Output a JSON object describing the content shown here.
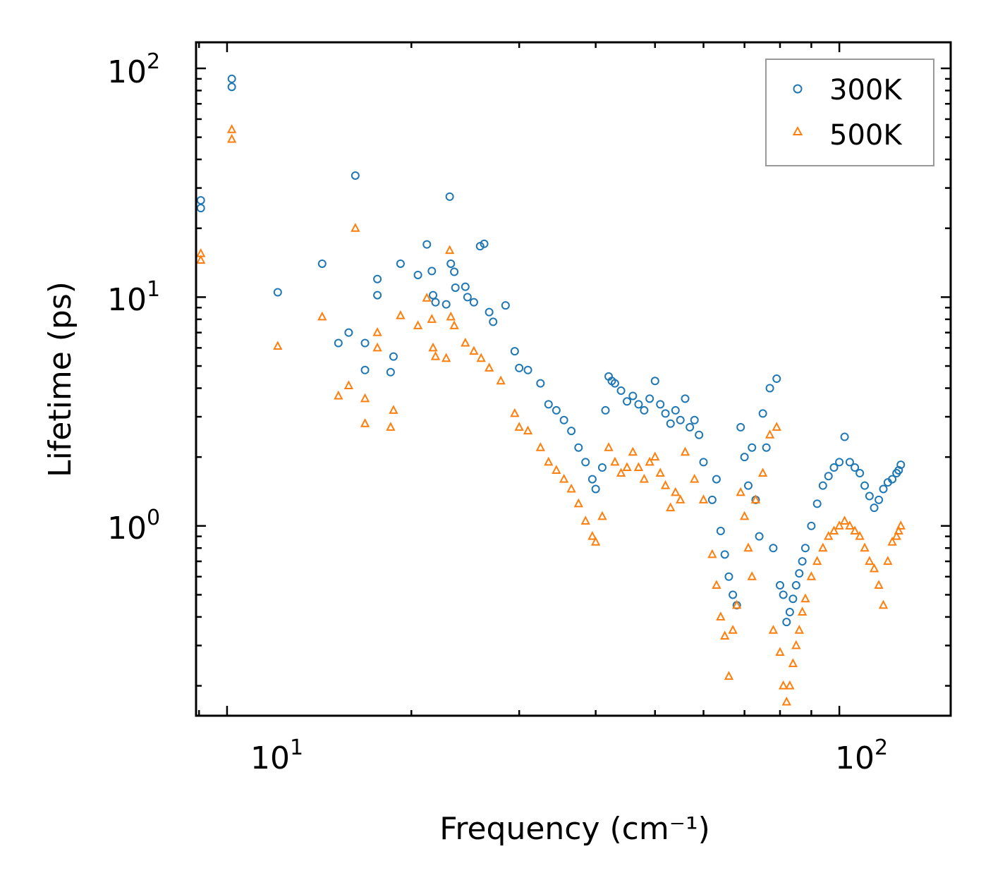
{
  "chart_data": {
    "type": "scatter",
    "title": "",
    "xlabel": "Frequency (cm⁻¹)",
    "ylabel": "Lifetime (ps)",
    "xscale": "log",
    "yscale": "log",
    "xlim": [
      8.9,
      152
    ],
    "ylim": [
      0.148,
      130
    ],
    "x_tick_labels": [
      {
        "value": 10,
        "base": "10",
        "exp": "1"
      },
      {
        "value": 100,
        "base": "10",
        "exp": "2"
      }
    ],
    "y_tick_labels": [
      {
        "value": 1,
        "base": "10",
        "exp": "0"
      },
      {
        "value": 10,
        "base": "10",
        "exp": "1"
      },
      {
        "value": 100,
        "base": "10",
        "exp": "2"
      }
    ],
    "legend_position": "top-right",
    "series": [
      {
        "name": "300K",
        "marker": "circle",
        "color": "#1f77b4",
        "points": [
          [
            9.06,
            26.5
          ],
          [
            9.06,
            24.5
          ],
          [
            10.18,
            90
          ],
          [
            10.18,
            83
          ],
          [
            12.1,
            10.5
          ],
          [
            14.3,
            14
          ],
          [
            15.2,
            6.3
          ],
          [
            15.8,
            7
          ],
          [
            16.2,
            34
          ],
          [
            16.8,
            6.3
          ],
          [
            16.8,
            4.8
          ],
          [
            17.6,
            12
          ],
          [
            17.6,
            10.2
          ],
          [
            18.5,
            4.7
          ],
          [
            18.7,
            5.5
          ],
          [
            19.2,
            14
          ],
          [
            20.5,
            12.5
          ],
          [
            21.2,
            17
          ],
          [
            21.6,
            13
          ],
          [
            21.7,
            10.2
          ],
          [
            21.9,
            9.5
          ],
          [
            22.8,
            9.3
          ],
          [
            23.1,
            27.5
          ],
          [
            23.2,
            14
          ],
          [
            23.5,
            12.9
          ],
          [
            23.6,
            11
          ],
          [
            24.5,
            11.1
          ],
          [
            24.7,
            10
          ],
          [
            25.3,
            9.5
          ],
          [
            25.9,
            16.7
          ],
          [
            26.3,
            17.1
          ],
          [
            26.8,
            8.6
          ],
          [
            27.2,
            7.8
          ],
          [
            28.5,
            9.2
          ],
          [
            29.5,
            5.8
          ],
          [
            30,
            4.9
          ],
          [
            31,
            4.8
          ],
          [
            32.5,
            4.2
          ],
          [
            33.5,
            3.4
          ],
          [
            34.5,
            3.2
          ],
          [
            35.5,
            2.9
          ],
          [
            36.5,
            2.6
          ],
          [
            37.5,
            2.2
          ],
          [
            38.5,
            1.9
          ],
          [
            39.5,
            1.6
          ],
          [
            40,
            1.45
          ],
          [
            41,
            1.8
          ],
          [
            41.5,
            3.2
          ],
          [
            42,
            4.5
          ],
          [
            42.5,
            4.3
          ],
          [
            43,
            4.2
          ],
          [
            44,
            3.9
          ],
          [
            45,
            3.5
          ],
          [
            46,
            3.7
          ],
          [
            47,
            3.4
          ],
          [
            48,
            3.2
          ],
          [
            49,
            3.6
          ],
          [
            50,
            4.3
          ],
          [
            51,
            3.4
          ],
          [
            52,
            3.1
          ],
          [
            53,
            2.8
          ],
          [
            54,
            3.2
          ],
          [
            55,
            2.9
          ],
          [
            56,
            3.6
          ],
          [
            57,
            2.7
          ],
          [
            58,
            2.9
          ],
          [
            59,
            2.5
          ],
          [
            60,
            1.9
          ],
          [
            62,
            1.3
          ],
          [
            63,
            1.6
          ],
          [
            64,
            0.95
          ],
          [
            65,
            0.75
          ],
          [
            66,
            0.6
          ],
          [
            67,
            0.5
          ],
          [
            68,
            0.45
          ],
          [
            69,
            2.7
          ],
          [
            70,
            2.0
          ],
          [
            71,
            1.5
          ],
          [
            72,
            2.2
          ],
          [
            73,
            1.3
          ],
          [
            74,
            0.9
          ],
          [
            75,
            3.1
          ],
          [
            76,
            2.2
          ],
          [
            77,
            4.0
          ],
          [
            78,
            0.8
          ],
          [
            79,
            4.4
          ],
          [
            80,
            0.55
          ],
          [
            81,
            0.5
          ],
          [
            82,
            0.38
          ],
          [
            83,
            0.42
          ],
          [
            84,
            0.48
          ],
          [
            85,
            0.55
          ],
          [
            86,
            0.62
          ],
          [
            87,
            0.7
          ],
          [
            88,
            0.8
          ],
          [
            90,
            1.0
          ],
          [
            92,
            1.25
          ],
          [
            94,
            1.5
          ],
          [
            96,
            1.65
          ],
          [
            98,
            1.8
          ],
          [
            100,
            1.9
          ],
          [
            102,
            2.45
          ],
          [
            104,
            1.9
          ],
          [
            106,
            1.8
          ],
          [
            108,
            1.7
          ],
          [
            110,
            1.5
          ],
          [
            112,
            1.35
          ],
          [
            114,
            1.2
          ],
          [
            116,
            1.3
          ],
          [
            118,
            1.45
          ],
          [
            120,
            1.55
          ],
          [
            122,
            1.6
          ],
          [
            124,
            1.7
          ],
          [
            125,
            1.75
          ],
          [
            126,
            1.85
          ]
        ]
      },
      {
        "name": "500K",
        "marker": "triangle",
        "color": "#ff7f0e",
        "points": [
          [
            9.06,
            15.5
          ],
          [
            9.06,
            14.5
          ],
          [
            10.18,
            54
          ],
          [
            10.18,
            49
          ],
          [
            12.1,
            6.1
          ],
          [
            14.3,
            8.2
          ],
          [
            15.2,
            3.7
          ],
          [
            15.8,
            4.1
          ],
          [
            16.2,
            20
          ],
          [
            16.8,
            3.6
          ],
          [
            16.8,
            2.8
          ],
          [
            17.6,
            7
          ],
          [
            17.6,
            6
          ],
          [
            18.5,
            2.7
          ],
          [
            18.7,
            3.2
          ],
          [
            19.2,
            8.3
          ],
          [
            20.5,
            7.5
          ],
          [
            21.2,
            9.9
          ],
          [
            21.6,
            8
          ],
          [
            21.7,
            6
          ],
          [
            21.9,
            5.5
          ],
          [
            22.8,
            5.4
          ],
          [
            23.1,
            16
          ],
          [
            23.2,
            8.2
          ],
          [
            23.5,
            7.5
          ],
          [
            24.5,
            6.3
          ],
          [
            25.3,
            5.8
          ],
          [
            26,
            5.4
          ],
          [
            26.8,
            4.9
          ],
          [
            28,
            4.3
          ],
          [
            29.5,
            3.1
          ],
          [
            30,
            2.7
          ],
          [
            31,
            2.6
          ],
          [
            32.5,
            2.2
          ],
          [
            33.5,
            1.9
          ],
          [
            34.5,
            1.75
          ],
          [
            35.5,
            1.6
          ],
          [
            36.5,
            1.45
          ],
          [
            37.5,
            1.25
          ],
          [
            38.5,
            1.05
          ],
          [
            39.5,
            0.9
          ],
          [
            40,
            0.85
          ],
          [
            41,
            1.1
          ],
          [
            42,
            2.2
          ],
          [
            43,
            1.9
          ],
          [
            44,
            1.7
          ],
          [
            45,
            1.8
          ],
          [
            46,
            2.1
          ],
          [
            47,
            1.8
          ],
          [
            48,
            1.6
          ],
          [
            49,
            1.9
          ],
          [
            50,
            2.0
          ],
          [
            51,
            1.7
          ],
          [
            52,
            1.5
          ],
          [
            53,
            1.2
          ],
          [
            54,
            1.4
          ],
          [
            55,
            1.3
          ],
          [
            56,
            2.1
          ],
          [
            58,
            1.6
          ],
          [
            60,
            1.3
          ],
          [
            62,
            0.75
          ],
          [
            63,
            0.55
          ],
          [
            64,
            0.4
          ],
          [
            65,
            0.33
          ],
          [
            66,
            0.22
          ],
          [
            67,
            0.35
          ],
          [
            68,
            0.45
          ],
          [
            69,
            1.4
          ],
          [
            70,
            1.1
          ],
          [
            71,
            0.8
          ],
          [
            72,
            0.6
          ],
          [
            73,
            1.3
          ],
          [
            75,
            1.7
          ],
          [
            77,
            2.5
          ],
          [
            78,
            0.35
          ],
          [
            79,
            2.7
          ],
          [
            80,
            0.28
          ],
          [
            81,
            0.2
          ],
          [
            82,
            0.17
          ],
          [
            83,
            0.2
          ],
          [
            84,
            0.25
          ],
          [
            85,
            0.3
          ],
          [
            86,
            0.35
          ],
          [
            87,
            0.42
          ],
          [
            88,
            0.48
          ],
          [
            90,
            0.6
          ],
          [
            92,
            0.7
          ],
          [
            94,
            0.8
          ],
          [
            96,
            0.9
          ],
          [
            98,
            0.95
          ],
          [
            100,
            1.0
          ],
          [
            102,
            1.05
          ],
          [
            104,
            1.0
          ],
          [
            106,
            0.95
          ],
          [
            108,
            0.9
          ],
          [
            110,
            0.8
          ],
          [
            112,
            0.7
          ],
          [
            114,
            0.65
          ],
          [
            116,
            0.55
          ],
          [
            118,
            0.45
          ],
          [
            120,
            0.7
          ],
          [
            122,
            0.85
          ],
          [
            124,
            0.9
          ],
          [
            125,
            0.95
          ],
          [
            126,
            1.0
          ]
        ]
      }
    ]
  }
}
